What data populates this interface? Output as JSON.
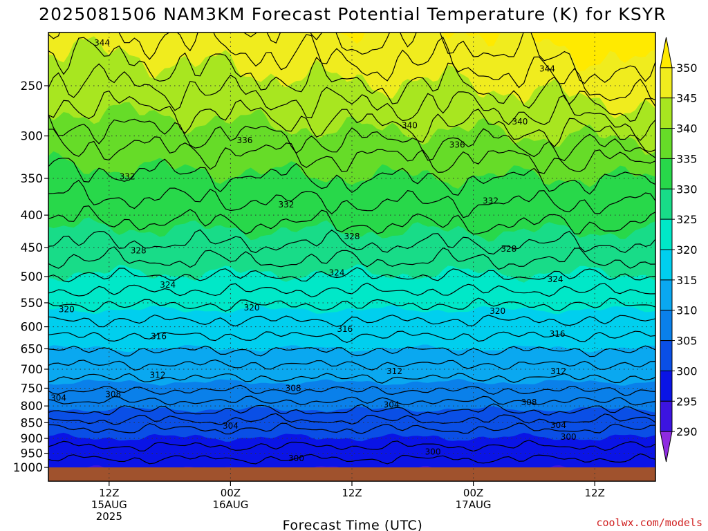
{
  "chart_data": {
    "type": "heatmap",
    "title": "2025081506 NAM3KM Forecast Potential Temperature (K) for KSYR",
    "xlabel": "Forecast Time (UTC)",
    "ylabel": "",
    "y_scale": "log",
    "y_reversed": true,
    "ylim": [
      1000,
      200
    ],
    "y_ticks": [
      250,
      300,
      350,
      400,
      450,
      500,
      550,
      600,
      650,
      700,
      750,
      800,
      850,
      900,
      950,
      1000
    ],
    "x_ticks": [
      {
        "hour": 6,
        "lines": [
          "12Z",
          "15AUG",
          "2025"
        ]
      },
      {
        "hour": 18,
        "lines": [
          "00Z",
          "16AUG"
        ]
      },
      {
        "hour": 30,
        "lines": [
          "12Z"
        ]
      },
      {
        "hour": 42,
        "lines": [
          "00Z",
          "17AUG"
        ]
      },
      {
        "hour": 54,
        "lines": [
          "12Z"
        ]
      }
    ],
    "xlim": [
      0,
      60
    ],
    "grid": "dotted",
    "colorbar": {
      "levels": [
        290,
        295,
        300,
        305,
        310,
        315,
        320,
        325,
        330,
        335,
        340,
        345,
        350
      ],
      "labels": [
        "290",
        "295",
        "300",
        "305",
        "310",
        "315",
        "320",
        "325",
        "330",
        "335",
        "340",
        "345",
        "350"
      ],
      "colors": [
        "#8e2be0",
        "#3c14e0",
        "#0a14e6",
        "#0a4fe6",
        "#0a80ea",
        "#0aa8f0",
        "#00cfee",
        "#00e8c8",
        "#18dc88",
        "#28d84a",
        "#66dc28",
        "#a8e620",
        "#f0ec1e",
        "#ffea00"
      ],
      "placement": "right"
    },
    "contour_labels": [
      {
        "value": "344",
        "hour": 5.3,
        "p": 214
      },
      {
        "value": "344",
        "hour": 49.3,
        "p": 235
      },
      {
        "value": "340",
        "hour": 35.7,
        "p": 289
      },
      {
        "value": "340",
        "hour": 46.6,
        "p": 285
      },
      {
        "value": "336",
        "hour": 19.4,
        "p": 305
      },
      {
        "value": "336",
        "hour": 40.4,
        "p": 310
      },
      {
        "value": "332",
        "hour": 7.8,
        "p": 348
      },
      {
        "value": "332",
        "hour": 23.5,
        "p": 385
      },
      {
        "value": "332",
        "hour": 43.7,
        "p": 380
      },
      {
        "value": "328",
        "hour": 8.9,
        "p": 455
      },
      {
        "value": "328",
        "hour": 30,
        "p": 432
      },
      {
        "value": "328",
        "hour": 45.5,
        "p": 452
      },
      {
        "value": "324",
        "hour": 11.8,
        "p": 515
      },
      {
        "value": "324",
        "hour": 28.5,
        "p": 493
      },
      {
        "value": "324",
        "hour": 50.1,
        "p": 505
      },
      {
        "value": "320",
        "hour": 1.8,
        "p": 563
      },
      {
        "value": "320",
        "hour": 20.1,
        "p": 560
      },
      {
        "value": "320",
        "hour": 44.4,
        "p": 567
      },
      {
        "value": "316",
        "hour": 10.9,
        "p": 621
      },
      {
        "value": "316",
        "hour": 29.3,
        "p": 605
      },
      {
        "value": "316",
        "hour": 50.3,
        "p": 616
      },
      {
        "value": "312",
        "hour": 10.8,
        "p": 715
      },
      {
        "value": "312",
        "hour": 34.2,
        "p": 705
      },
      {
        "value": "312",
        "hour": 50.4,
        "p": 705
      },
      {
        "value": "308",
        "hour": 6.4,
        "p": 767
      },
      {
        "value": "308",
        "hour": 24.2,
        "p": 750
      },
      {
        "value": "308",
        "hour": 47.5,
        "p": 790
      },
      {
        "value": "304",
        "hour": 1.0,
        "p": 777
      },
      {
        "value": "304",
        "hour": 18.0,
        "p": 860
      },
      {
        "value": "304",
        "hour": 33.9,
        "p": 797
      },
      {
        "value": "304",
        "hour": 50.4,
        "p": 858
      },
      {
        "value": "300",
        "hour": 24.5,
        "p": 968
      },
      {
        "value": "300",
        "hour": 38.0,
        "p": 945
      },
      {
        "value": "300",
        "hour": 51.4,
        "p": 895
      }
    ],
    "credit": "coolwx.com/models"
  }
}
